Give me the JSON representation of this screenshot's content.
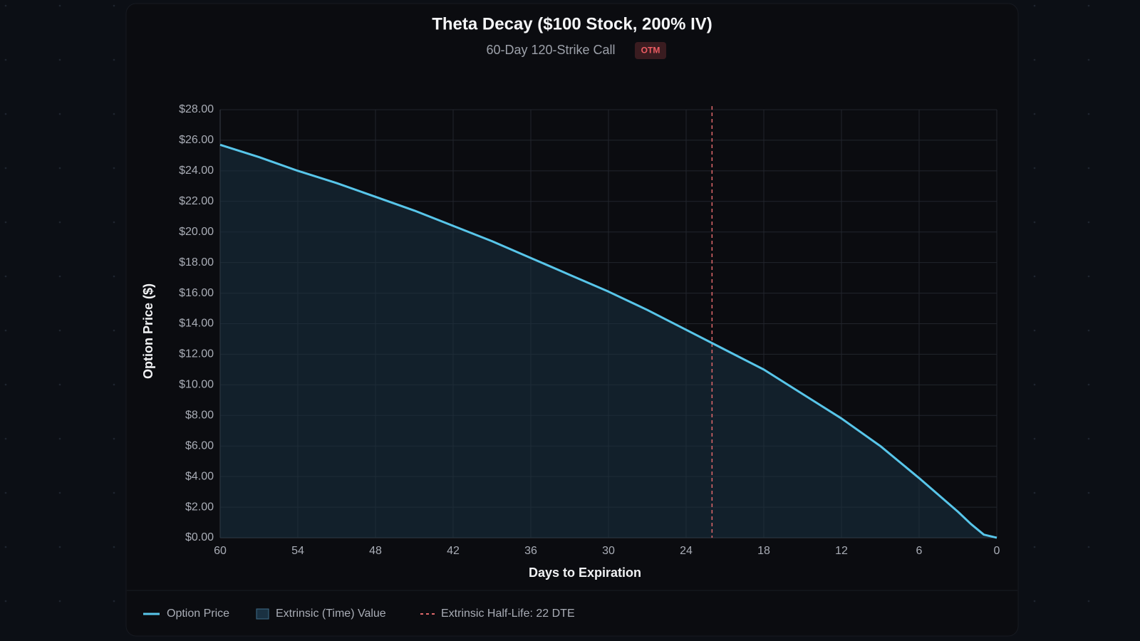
{
  "chart_data": {
    "type": "area-line",
    "title": "Theta Decay ($100 Stock, 200% IV)",
    "subtitle": "60-Day 120-Strike Call",
    "badge": "OTM",
    "x_label": "Days to Expiration",
    "y_label": "Option Price ($)",
    "x": [
      60,
      57,
      54,
      51,
      48,
      45,
      42,
      39,
      36,
      33,
      30,
      27,
      24,
      21,
      18,
      15,
      12,
      9,
      6,
      3,
      2,
      1,
      0
    ],
    "series": [
      {
        "name": "Option Price",
        "color": "#58c6ea",
        "values": [
          25.7,
          24.9,
          24.0,
          23.2,
          22.3,
          21.4,
          20.4,
          19.4,
          18.3,
          17.2,
          16.1,
          14.9,
          13.6,
          12.3,
          11.0,
          9.4,
          7.8,
          6.0,
          3.9,
          1.7,
          0.9,
          0.2,
          0.0
        ]
      }
    ],
    "area": {
      "name": "Extrinsic (Time) Value",
      "color": "#1a3142"
    },
    "half_life": {
      "value": 22,
      "label": "Extrinsic Half-Life: 22 DTE",
      "color": "#e0686b"
    },
    "xlim": [
      60,
      0
    ],
    "xticks": [
      60,
      54,
      48,
      42,
      36,
      30,
      24,
      18,
      12,
      6,
      0
    ],
    "ylim": [
      0,
      28
    ],
    "yticks": [
      {
        "value": 0,
        "label": "$0.00"
      },
      {
        "value": 2,
        "label": "$2.00"
      },
      {
        "value": 4,
        "label": "$4.00"
      },
      {
        "value": 6,
        "label": "$6.00"
      },
      {
        "value": 8,
        "label": "$8.00"
      },
      {
        "value": 10,
        "label": "$10.00"
      },
      {
        "value": 12,
        "label": "$12.00"
      },
      {
        "value": 14,
        "label": "$14.00"
      },
      {
        "value": 16,
        "label": "$16.00"
      },
      {
        "value": 18,
        "label": "$18.00"
      },
      {
        "value": 20,
        "label": "$20.00"
      },
      {
        "value": 22,
        "label": "$22.00"
      },
      {
        "value": 24,
        "label": "$24.00"
      },
      {
        "value": 26,
        "label": "$26.00"
      },
      {
        "value": 28,
        "label": "$28.00"
      }
    ],
    "grid": true
  }
}
